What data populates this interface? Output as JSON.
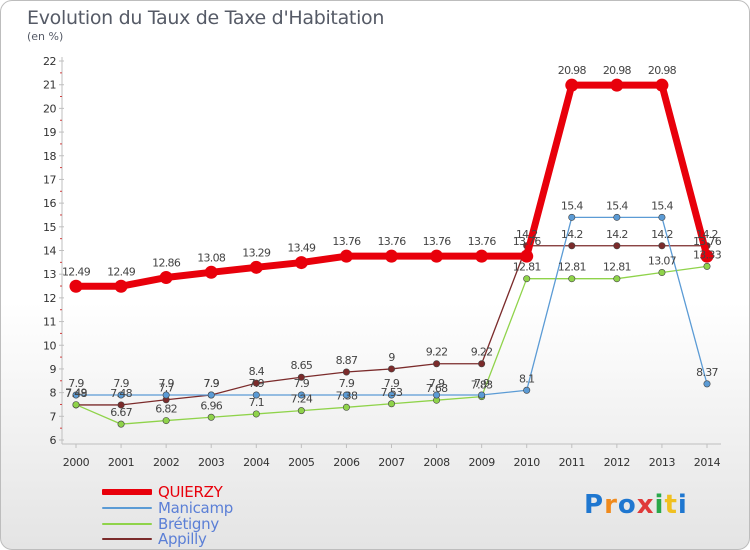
{
  "header": {
    "title": "Evolution du Taux de Taxe d'Habitation",
    "unit": "(en %)"
  },
  "chart_data": {
    "type": "line",
    "title": "Evolution du Taux de Taxe d'Habitation",
    "ylabel": "(en %)",
    "x": [
      "2000",
      "2001",
      "2002",
      "2003",
      "2004",
      "2005",
      "2006",
      "2007",
      "2008",
      "2009",
      "2010",
      "2011",
      "2012",
      "2013",
      "2014"
    ],
    "ylim": [
      6,
      22
    ],
    "yticks": [
      6,
      7,
      8,
      9,
      10,
      11,
      12,
      13,
      14,
      15,
      16,
      17,
      18,
      19,
      20,
      21,
      22
    ],
    "grid": false,
    "legend_position": "bottom-left",
    "series": [
      {
        "name": "QUIERZY",
        "color": "#e8000b",
        "values": [
          12.49,
          12.49,
          12.86,
          13.08,
          13.29,
          13.49,
          13.76,
          13.76,
          13.76,
          13.76,
          13.76,
          20.98,
          20.98,
          20.98,
          13.76
        ],
        "labels": [
          "12.49",
          "12.49",
          "12.86",
          "13.08",
          "13.29",
          "13.49",
          "13.76",
          "13.76",
          "13.76",
          "13.76",
          "13.76",
          "20.98",
          "20.98",
          "20.98",
          "13.76"
        ]
      },
      {
        "name": "Manicamp",
        "color": "#5b9bd5",
        "values": [
          7.9,
          7.9,
          7.9,
          7.9,
          7.9,
          7.9,
          7.9,
          7.9,
          7.9,
          7.9,
          8.1,
          15.4,
          15.4,
          15.4,
          8.37
        ],
        "labels": [
          "7.9",
          "7.9",
          "7.9",
          "7.9",
          "7.9",
          "7.9",
          "7.9",
          "7.9",
          "7.9",
          "7.9",
          "8.1",
          "15.4",
          "15.4",
          "15.4",
          "8.37"
        ]
      },
      {
        "name": "Brétigny",
        "color": "#8fd34a",
        "values": [
          7.49,
          6.67,
          6.82,
          6.96,
          7.1,
          7.24,
          7.38,
          7.53,
          7.68,
          7.83,
          12.81,
          12.81,
          12.81,
          13.07,
          13.33
        ],
        "labels": [
          "7.49",
          "6.67",
          "6.82",
          "6.96",
          "7.1",
          "7.24",
          "7.38",
          "7.53",
          "7.68",
          "7.83",
          "12.81",
          "12.81",
          "12.81",
          "13.07",
          "13.33"
        ]
      },
      {
        "name": "Appilly",
        "color": "#7b2b2b",
        "values": [
          7.48,
          7.48,
          7.7,
          7.9,
          8.4,
          8.65,
          8.87,
          9,
          9.22,
          9.22,
          14.2,
          14.2,
          14.2,
          14.2,
          14.2
        ],
        "labels": [
          "7.48",
          "7.48",
          "7.7",
          "7.9",
          "8.4",
          "8.65",
          "8.87",
          "9",
          "9.22",
          "9.22",
          "14.2",
          "14.2",
          "14.2",
          "14.2",
          "14.2"
        ]
      }
    ]
  },
  "branding": {
    "logo_text": "Proxiti"
  }
}
